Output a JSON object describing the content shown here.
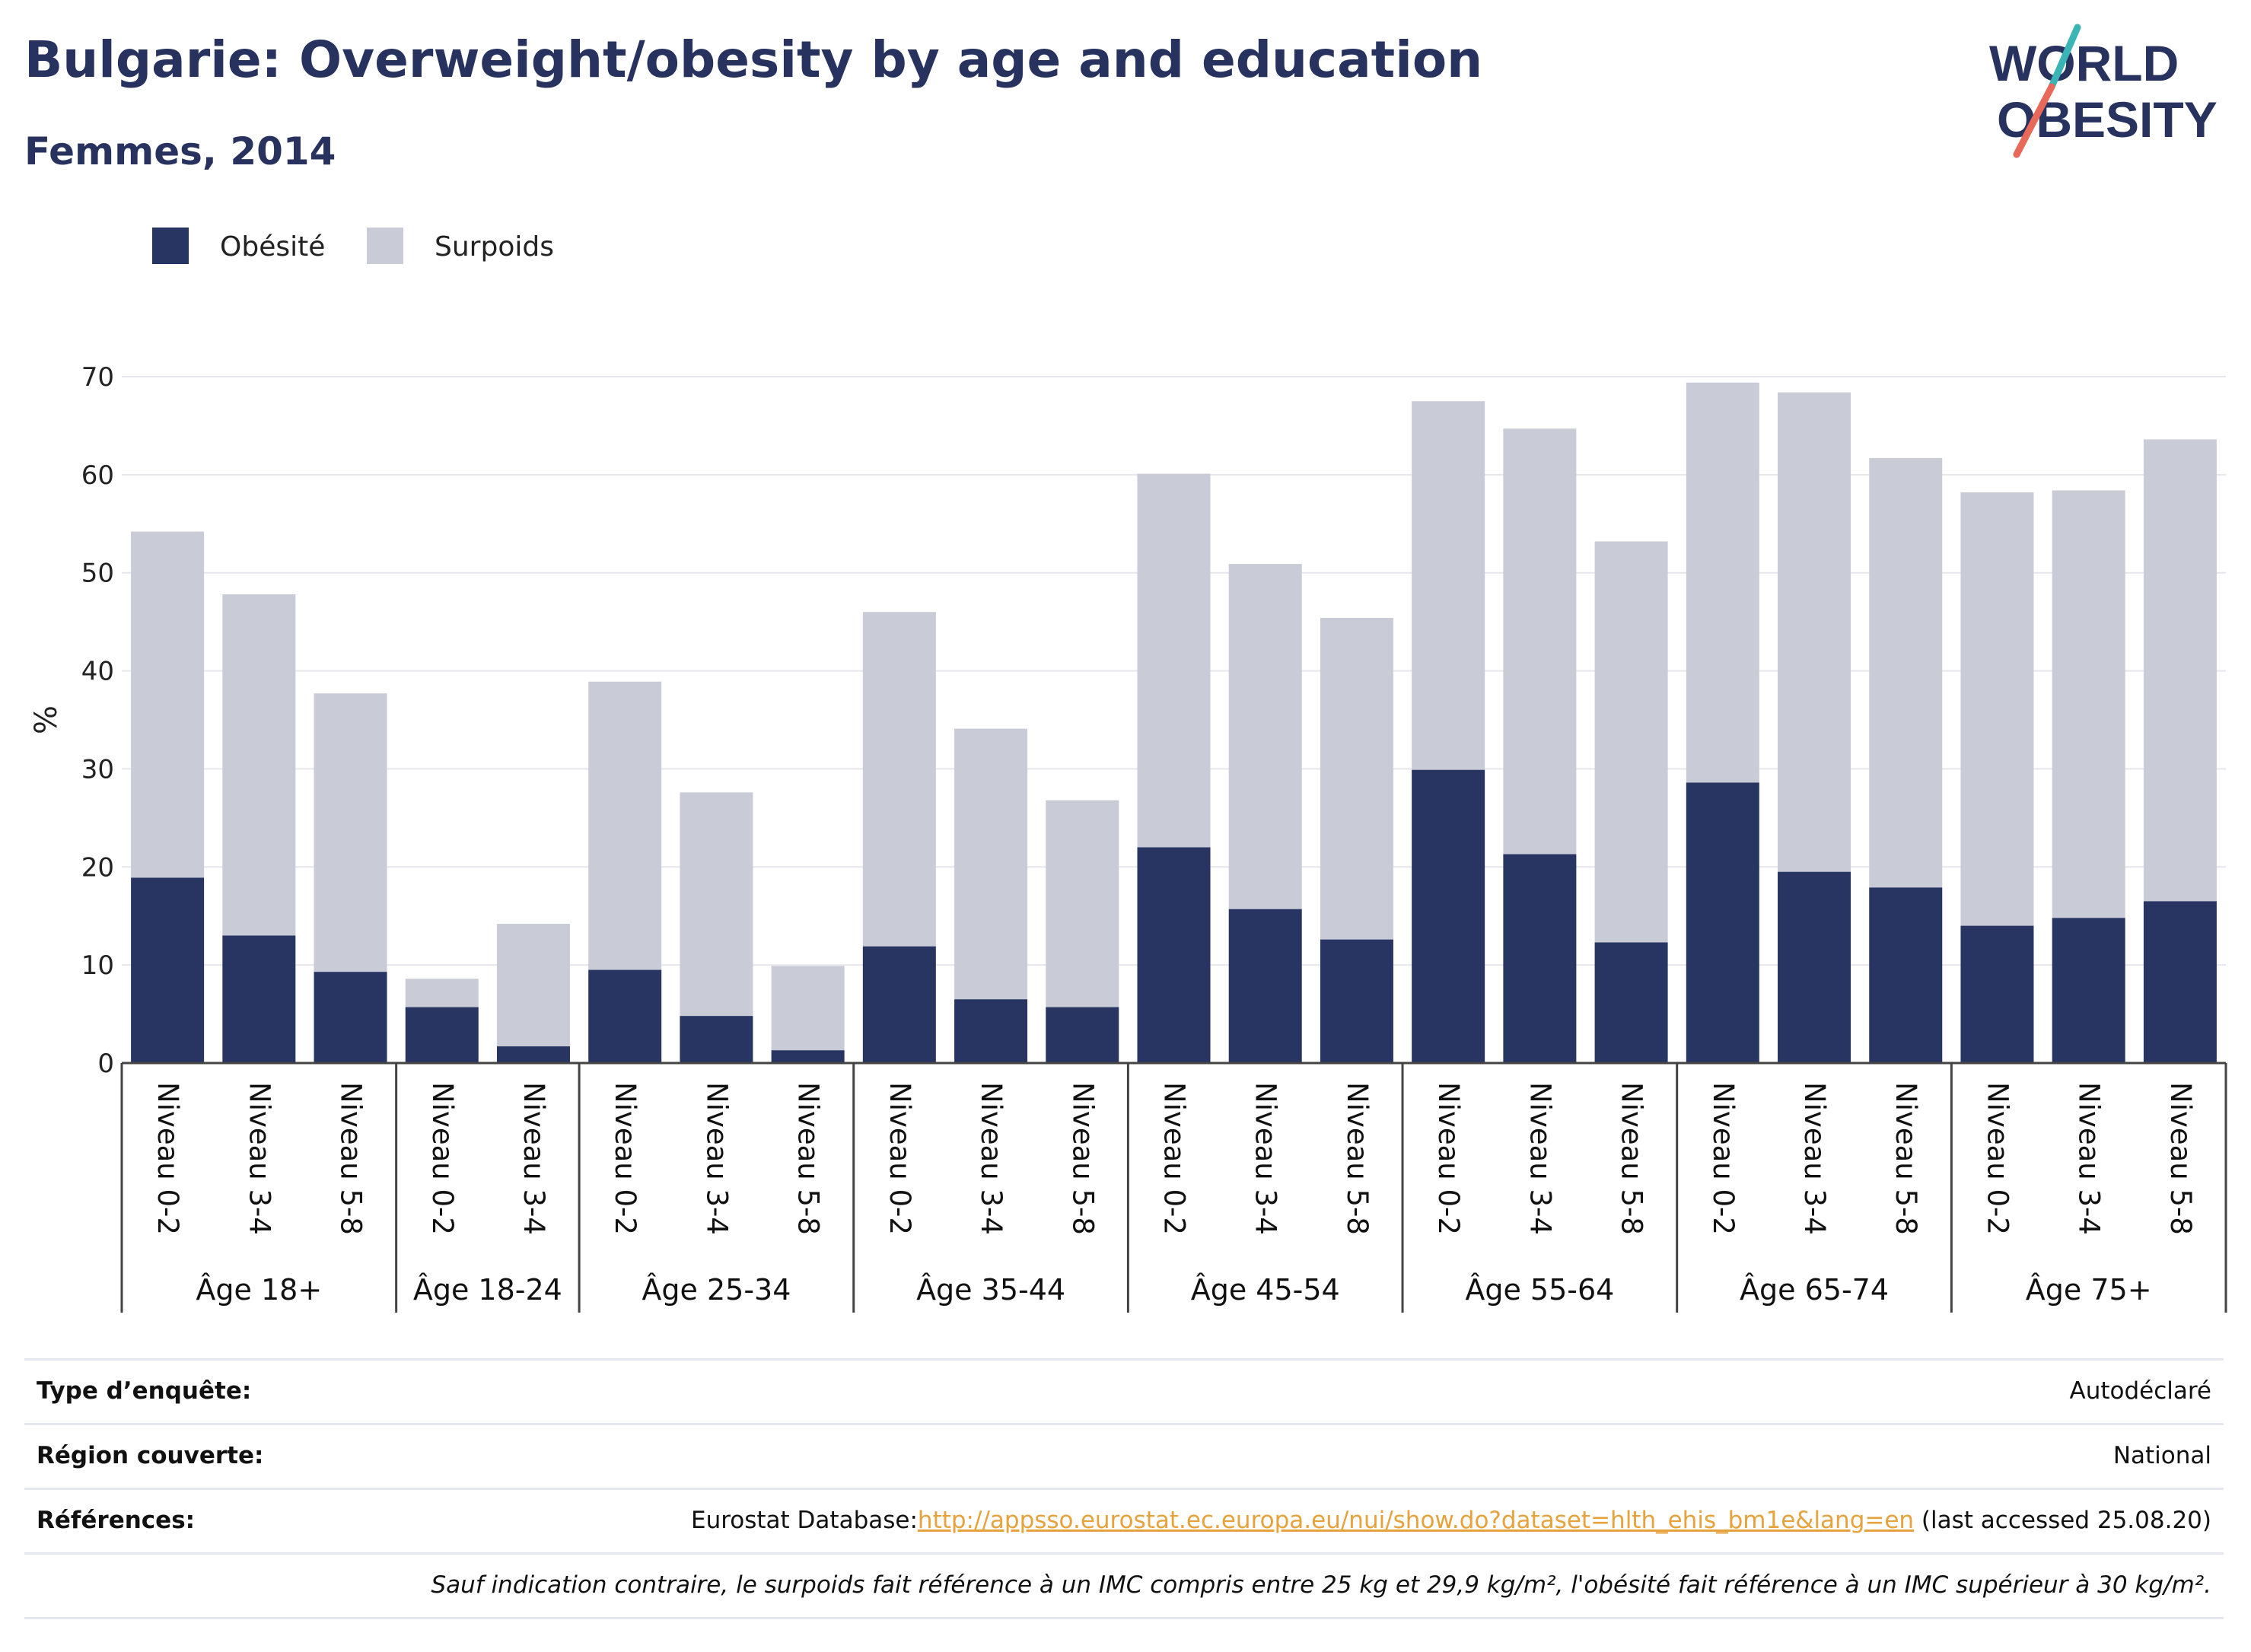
{
  "title": "Bulgarie: Overweight/obesity by age and education",
  "subtitle": "Femmes, 2014",
  "logo": {
    "line1": "WORLD",
    "line2": "OBESITY"
  },
  "colors": {
    "title": "#27325f",
    "obese": "#283562",
    "overweight": "#c9cbd7",
    "link": "#e6a23c",
    "logo_teal": "#3ab4b4",
    "logo_red": "#e8685a"
  },
  "chart_data": {
    "type": "bar",
    "stacked": true,
    "ylabel": "%",
    "ylim": [
      0,
      70
    ],
    "yticks": [
      0,
      10,
      20,
      30,
      40,
      50,
      60,
      70
    ],
    "grid": true,
    "legend_position": "top-left",
    "groups": [
      "Âge 18+",
      "Âge 18-24",
      "Âge 25-34",
      "Âge 35-44",
      "Âge 45-54",
      "Âge 55-64",
      "Âge 65-74",
      "Âge 75+"
    ],
    "categories": [
      {
        "group": "Âge 18+",
        "label": "Niveau 0-2"
      },
      {
        "group": "Âge 18+",
        "label": "Niveau 3-4"
      },
      {
        "group": "Âge 18+",
        "label": "Niveau 5-8"
      },
      {
        "group": "Âge 18-24",
        "label": "Niveau 0-2"
      },
      {
        "group": "Âge 18-24",
        "label": "Niveau 3-4"
      },
      {
        "group": "Âge 25-34",
        "label": "Niveau 0-2"
      },
      {
        "group": "Âge 25-34",
        "label": "Niveau 3-4"
      },
      {
        "group": "Âge 25-34",
        "label": "Niveau 5-8"
      },
      {
        "group": "Âge 35-44",
        "label": "Niveau 0-2"
      },
      {
        "group": "Âge 35-44",
        "label": "Niveau 3-4"
      },
      {
        "group": "Âge 35-44",
        "label": "Niveau 5-8"
      },
      {
        "group": "Âge 45-54",
        "label": "Niveau 0-2"
      },
      {
        "group": "Âge 45-54",
        "label": "Niveau 3-4"
      },
      {
        "group": "Âge 45-54",
        "label": "Niveau 5-8"
      },
      {
        "group": "Âge 55-64",
        "label": "Niveau 0-2"
      },
      {
        "group": "Âge 55-64",
        "label": "Niveau 3-4"
      },
      {
        "group": "Âge 55-64",
        "label": "Niveau 5-8"
      },
      {
        "group": "Âge 65-74",
        "label": "Niveau 0-2"
      },
      {
        "group": "Âge 65-74",
        "label": "Niveau 3-4"
      },
      {
        "group": "Âge 65-74",
        "label": "Niveau 5-8"
      },
      {
        "group": "Âge 75+",
        "label": "Niveau 0-2"
      },
      {
        "group": "Âge 75+",
        "label": "Niveau 3-4"
      },
      {
        "group": "Âge 75+",
        "label": "Niveau 5-8"
      }
    ],
    "series": [
      {
        "name": "Obésité",
        "values": [
          18.9,
          13.0,
          9.3,
          5.7,
          1.7,
          9.5,
          4.8,
          1.3,
          11.9,
          6.5,
          5.7,
          22.0,
          15.7,
          12.6,
          29.9,
          21.3,
          12.3,
          28.6,
          19.5,
          17.9,
          14.0,
          14.8,
          16.5
        ]
      },
      {
        "name": "Surpoids",
        "values": [
          35.3,
          34.8,
          28.4,
          2.9,
          12.5,
          29.4,
          22.8,
          8.6,
          34.1,
          27.6,
          21.1,
          38.1,
          35.2,
          32.8,
          37.6,
          43.4,
          40.9,
          40.8,
          48.9,
          43.8,
          44.2,
          43.6,
          47.1
        ]
      }
    ]
  },
  "info": {
    "survey_label": "Type d’enquête:",
    "survey_value": "Autodéclaré",
    "region_label": "Région couverte:",
    "region_value": "National",
    "refs_label": "Références:",
    "refs_prefix": "Eurostat Database:",
    "refs_link": "http://appsso.eurostat.ec.europa.eu/nui/show.do?dataset=hlth_ehis_bm1e&lang=en",
    "refs_suffix": " (last accessed 25.08.20)",
    "note": "Sauf indication contraire, le surpoids fait référence à un IMC compris entre 25 kg et 29,9 kg/m², l'obésité fait référence à un IMC supérieur à 30 kg/m²."
  }
}
